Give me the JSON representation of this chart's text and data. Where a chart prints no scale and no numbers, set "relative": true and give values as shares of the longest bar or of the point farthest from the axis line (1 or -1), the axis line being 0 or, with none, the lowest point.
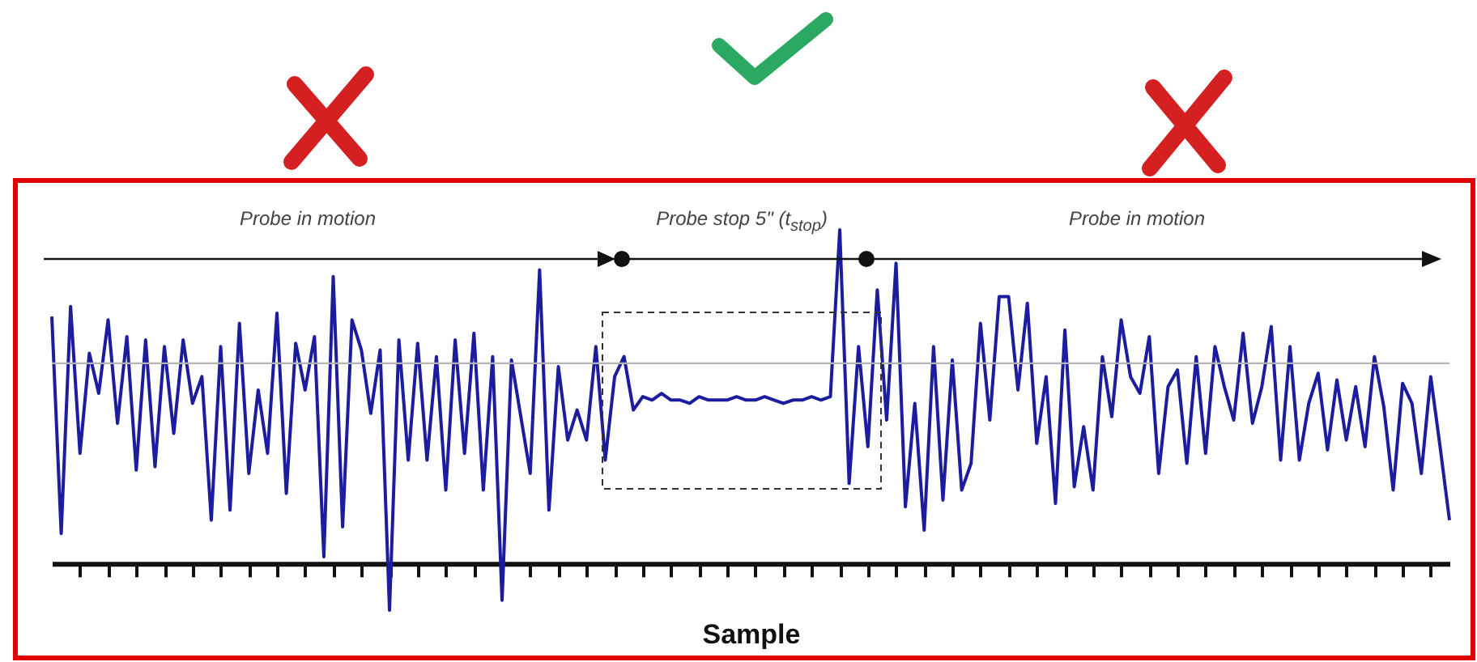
{
  "chart_data": {
    "type": "line",
    "relative": true,
    "xlabel": "Sample",
    "annotations": [
      "Probe in motion",
      "Probe stop 5\" (t$_{stop}$)",
      "Probe in motion"
    ],
    "ref_lines": [
      {
        "axis": "y",
        "value": 0.6,
        "color": "#b4b4b4"
      }
    ],
    "categories": [
      null,
      null,
      null,
      null,
      null,
      null,
      null,
      null,
      null,
      null,
      null,
      null,
      null,
      null,
      null,
      null,
      null,
      null,
      null,
      null,
      null,
      null,
      null,
      null,
      null,
      null,
      null,
      null,
      null,
      null,
      null,
      null,
      null,
      null,
      null,
      null,
      null,
      null,
      null,
      null,
      null,
      null,
      null,
      null,
      null,
      null,
      null,
      null,
      null,
      null,
      null,
      null,
      null,
      null,
      null,
      null,
      null,
      null,
      null,
      null,
      null,
      null,
      null,
      null,
      null,
      null,
      null,
      null,
      null,
      null,
      null,
      null,
      null,
      null,
      null,
      null,
      null,
      null,
      null,
      null,
      null,
      null,
      null,
      null,
      null,
      null,
      null,
      null,
      null,
      null,
      null,
      null,
      null,
      null,
      null,
      null,
      null,
      null,
      null,
      null,
      null,
      null,
      null,
      null,
      null,
      null,
      null,
      null,
      null,
      null,
      null,
      null,
      null,
      null,
      null,
      null,
      null,
      null,
      null,
      null,
      null,
      null,
      null,
      null,
      null,
      null,
      null,
      null,
      null,
      null,
      null,
      null,
      null,
      null,
      null,
      null,
      null,
      null,
      null,
      null,
      null,
      null,
      null,
      null,
      null,
      null,
      null,
      null,
      null,
      null
    ],
    "series": [
      {
        "color": "#1c1c9e",
        "values": [
          0.74,
          0.09,
          0.77,
          0.33,
          0.63,
          0.51,
          0.73,
          0.42,
          0.68,
          0.28,
          0.67,
          0.29,
          0.65,
          0.39,
          0.67,
          0.48,
          0.56,
          0.13,
          0.65,
          0.16,
          0.72,
          0.27,
          0.52,
          0.33,
          0.75,
          0.21,
          0.66,
          0.52,
          0.68,
          0.02,
          0.86,
          0.11,
          0.73,
          0.64,
          0.45,
          0.64,
          -0.14,
          0.67,
          0.31,
          0.66,
          0.31,
          0.62,
          0.22,
          0.67,
          0.33,
          0.69,
          0.22,
          0.62,
          -0.11,
          0.61,
          0.44,
          0.27,
          0.88,
          0.16,
          0.59,
          0.37,
          0.46,
          0.37,
          0.65,
          0.31,
          0.56,
          0.62,
          0.46,
          0.5,
          0.49,
          0.51,
          0.49,
          0.49,
          0.48,
          0.5,
          0.49,
          0.49,
          0.49,
          0.5,
          0.49,
          0.49,
          0.5,
          0.49,
          0.48,
          0.49,
          0.49,
          0.5,
          0.49,
          0.5,
          1.0,
          0.24,
          0.65,
          0.35,
          0.82,
          0.43,
          0.9,
          0.17,
          0.48,
          0.1,
          0.65,
          0.19,
          0.61,
          0.22,
          0.3,
          0.72,
          0.43,
          0.8,
          0.8,
          0.52,
          0.78,
          0.36,
          0.56,
          0.18,
          0.7,
          0.23,
          0.41,
          0.22,
          0.62,
          0.44,
          0.73,
          0.56,
          0.51,
          0.68,
          0.27,
          0.53,
          0.58,
          0.3,
          0.62,
          0.33,
          0.65,
          0.53,
          0.43,
          0.69,
          0.42,
          0.53,
          0.71,
          0.31,
          0.65,
          0.31,
          0.48,
          0.57,
          0.34,
          0.55,
          0.37,
          0.53,
          0.35,
          0.62,
          0.47,
          0.22,
          0.54,
          0.48,
          0.27,
          0.56,
          0.35,
          0.13
        ]
      }
    ]
  }
}
